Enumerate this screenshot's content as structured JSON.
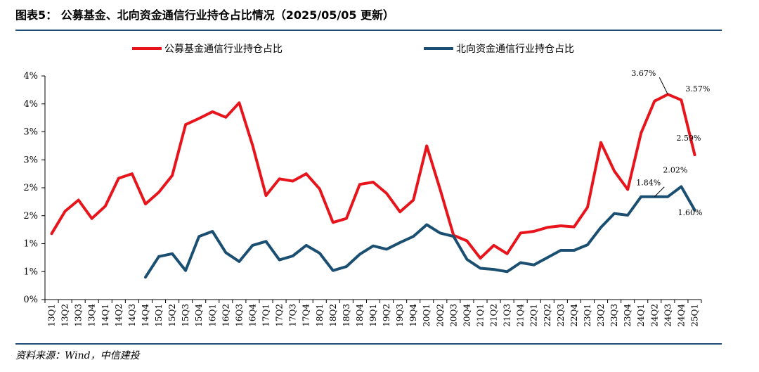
{
  "header": {
    "title": "图表5：  公募基金、北向资金通信行业持仓占比情况（2025/05/05 更新）"
  },
  "footer": {
    "source": "资料来源：Wind，中信建投"
  },
  "colors": {
    "series_1": "#e8141b",
    "series_2": "#1b4f72",
    "rule": "#1f4e79",
    "axis": "#000000"
  },
  "chart_data": {
    "type": "line",
    "title": "",
    "xlabel": "",
    "ylabel": "",
    "legend_placement": "top",
    "grid": false,
    "ylim": [
      0,
      4.0
    ],
    "y_ticks": [
      0,
      0.5,
      1.0,
      1.5,
      2.0,
      2.5,
      3.0,
      3.5,
      4.0
    ],
    "y_tick_labels": [
      "0%",
      "1%",
      "1%",
      "2%",
      "2%",
      "3%",
      "3%",
      "4%",
      "4%"
    ],
    "categories": [
      "13Q1",
      "13Q2",
      "13Q3",
      "13Q4",
      "14Q1",
      "14Q2",
      "14Q3",
      "14Q4",
      "15Q1",
      "15Q2",
      "15Q3",
      "15Q4",
      "16Q1",
      "16Q2",
      "16Q3",
      "16Q4",
      "17Q1",
      "17Q2",
      "17Q3",
      "17Q4",
      "18Q1",
      "18Q2",
      "18Q3",
      "18Q4",
      "19Q1",
      "19Q2",
      "19Q3",
      "19Q4",
      "20Q1",
      "20Q2",
      "20Q3",
      "20Q4",
      "21Q1",
      "21Q2",
      "21Q3",
      "21Q4",
      "22Q1",
      "22Q2",
      "22Q3",
      "22Q4",
      "23Q1",
      "23Q2",
      "23Q3",
      "23Q4",
      "24Q1",
      "24Q2",
      "24Q3",
      "24Q4",
      "25Q1"
    ],
    "series": [
      {
        "name": "公募基金通信行业持仓占比",
        "values": [
          1.18,
          1.58,
          1.78,
          1.45,
          1.67,
          2.17,
          2.25,
          1.71,
          1.92,
          2.22,
          3.13,
          3.24,
          3.36,
          3.26,
          3.52,
          2.76,
          1.86,
          2.16,
          2.12,
          2.25,
          1.98,
          1.38,
          1.45,
          2.06,
          2.1,
          1.9,
          1.57,
          1.78,
          2.75,
          1.97,
          1.15,
          1.05,
          0.74,
          0.97,
          0.82,
          1.19,
          1.22,
          1.29,
          1.32,
          1.3,
          1.65,
          2.81,
          2.3,
          1.97,
          2.98,
          3.55,
          3.67,
          3.57,
          2.59
        ],
        "annotations": [
          {
            "index": 46,
            "label": "3.67%"
          },
          {
            "index": 47,
            "label": "3.57%"
          },
          {
            "index": 48,
            "label": "2.59%"
          }
        ]
      },
      {
        "name": "北向资金通信行业持仓占比",
        "values": [
          null,
          null,
          null,
          null,
          null,
          null,
          null,
          0.4,
          0.77,
          0.82,
          0.52,
          1.13,
          1.22,
          0.84,
          0.68,
          0.97,
          1.04,
          0.71,
          0.78,
          0.97,
          0.83,
          0.52,
          0.59,
          0.81,
          0.96,
          0.9,
          1.02,
          1.13,
          1.34,
          1.19,
          1.13,
          0.72,
          0.56,
          0.54,
          0.5,
          0.66,
          0.62,
          0.75,
          0.88,
          0.88,
          0.98,
          1.29,
          1.54,
          1.51,
          1.84,
          1.84,
          1.84,
          2.02,
          1.6
        ],
        "annotations": [
          {
            "index": 45,
            "label": "1.84%"
          },
          {
            "index": 47,
            "label": "2.02%"
          },
          {
            "index": 48,
            "label": "1.60%"
          }
        ]
      }
    ]
  }
}
